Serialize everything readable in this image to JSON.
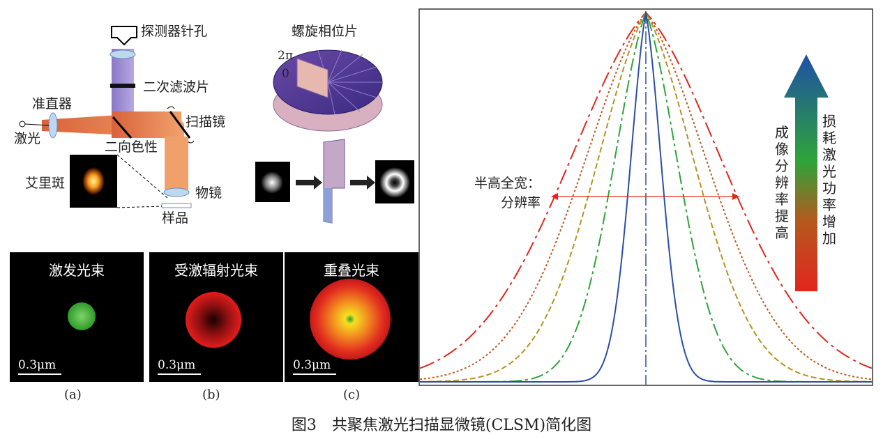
{
  "setup": {
    "detector_pinhole": "探测器针孔",
    "secondary_filter": "二次滤波片",
    "collimator": "准直器",
    "laser": "激光",
    "dichroic": "二向色性",
    "scan_mirror": "扫描镜",
    "airy_disk": "艾里斑",
    "objective": "物镜",
    "sample": "样品"
  },
  "vortex": {
    "title": "螺旋相位片",
    "label_2pi": "2π",
    "label_0": "0"
  },
  "panels": [
    {
      "title": "激发光束",
      "scale": "0.3μm",
      "sub": "(a)"
    },
    {
      "title": "受激辐射光束",
      "scale": "0.3μm",
      "sub": "(b)"
    },
    {
      "title": "重叠光束",
      "scale": "0.3μm",
      "sub": "(c)"
    }
  ],
  "plot": {
    "fwhm_label_1": "半高全宽：",
    "fwhm_label_2": "分辨率",
    "arrow_left_text": "成像分辨率提高",
    "arrow_right_text": "损耗激光功率增加",
    "curve_colors": [
      "#e2261c",
      "#c2581f",
      "#b8911e",
      "#2ea43a",
      "#2b4ea6"
    ]
  },
  "caption": "图3　共聚焦激光扫描显微镜(CLSM)简化图"
}
